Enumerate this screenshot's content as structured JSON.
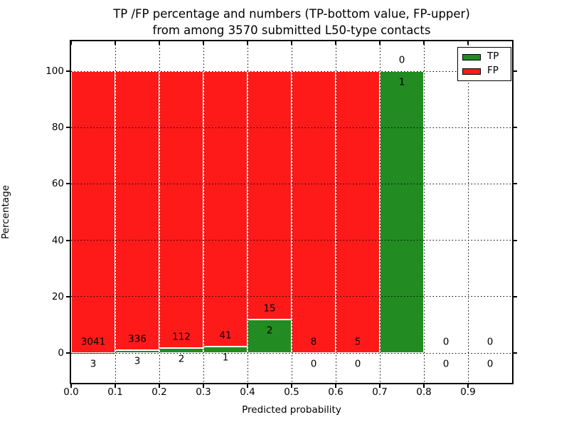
{
  "figure": {
    "title_line1": "TP /FP percentage and numbers (TP-bottom value, FP-upper)",
    "title_line2": "from among 3570 submitted L50-type contacts"
  },
  "chart_data": {
    "type": "bar",
    "stacked": true,
    "title": "TP /FP percentage and numbers (TP-bottom value, FP-upper) from among 3570 submitted L50-type contacts",
    "xlabel": "Predicted probability",
    "ylabel": "Percentage",
    "xlim": [
      0.0,
      1.0
    ],
    "ylim": [
      -10,
      110
    ],
    "grid": "dotted black, on top of bars",
    "total_contacts": 3570,
    "legend_position": "upper right",
    "legend": [
      {
        "label": "TP",
        "color": "#228b22"
      },
      {
        "label": "FP",
        "color": "#ff1a1a"
      }
    ],
    "colors": {
      "tp": "#228b22",
      "fp": "#ff1a1a",
      "bar_edge": "#ffffff"
    },
    "xticks": [
      "0.0",
      "0.1",
      "0.2",
      "0.3",
      "0.4",
      "0.5",
      "0.6",
      "0.7",
      "0.8",
      "0.9"
    ],
    "yticks": [
      0,
      20,
      40,
      60,
      80,
      100
    ],
    "bins": [
      {
        "range": [
          0.0,
          0.1
        ],
        "tp": 3,
        "fp": 3041,
        "tp_pct": 0.1
      },
      {
        "range": [
          0.1,
          0.2
        ],
        "tp": 3,
        "fp": 336,
        "tp_pct": 0.88
      },
      {
        "range": [
          0.2,
          0.3
        ],
        "tp": 2,
        "fp": 112,
        "tp_pct": 1.75
      },
      {
        "range": [
          0.3,
          0.4
        ],
        "tp": 1,
        "fp": 41,
        "tp_pct": 2.38
      },
      {
        "range": [
          0.4,
          0.5
        ],
        "tp": 2,
        "fp": 15,
        "tp_pct": 11.76
      },
      {
        "range": [
          0.5,
          0.6
        ],
        "tp": 0,
        "fp": 8,
        "tp_pct": 0
      },
      {
        "range": [
          0.6,
          0.7
        ],
        "tp": 0,
        "fp": 5,
        "tp_pct": 0
      },
      {
        "range": [
          0.7,
          0.8
        ],
        "tp": 1,
        "fp": 0,
        "tp_pct": 100
      },
      {
        "range": [
          0.8,
          0.9
        ],
        "tp": 0,
        "fp": 0,
        "tp_pct": 0
      },
      {
        "range": [
          0.9,
          1.0
        ],
        "tp": 0,
        "fp": 0,
        "tp_pct": 0
      }
    ],
    "annotation_note": "FP count printed above green-top boundary, TP count printed below it"
  }
}
